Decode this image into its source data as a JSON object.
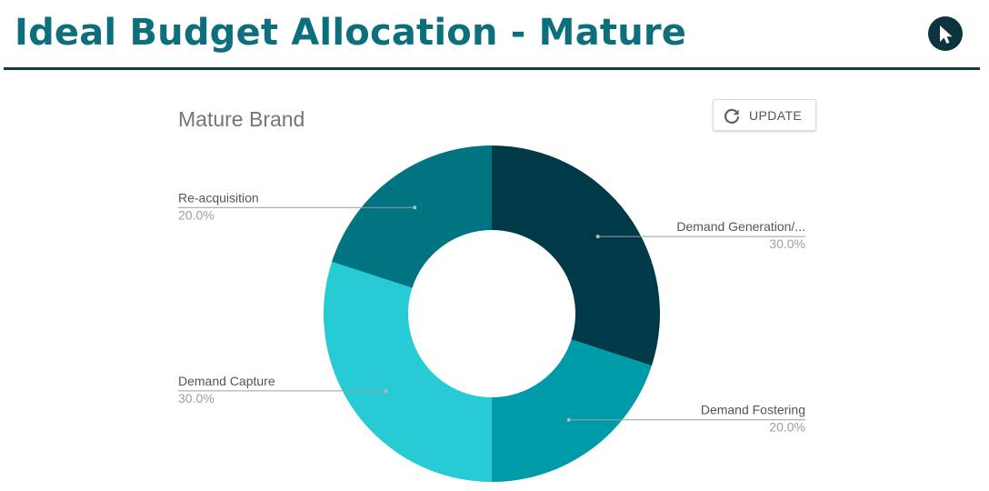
{
  "header": {
    "title": "Ideal Budget Allocation - Mature",
    "cursor_icon": "cursor-arrow-icon",
    "colors": {
      "title": "#0e6f7c",
      "rule": "#0c3b4a",
      "badge": "#0b3340"
    }
  },
  "toolbar": {
    "update_label": "UPDATE",
    "update_icon": "refresh-icon"
  },
  "chart_data": {
    "type": "pie",
    "title": "Mature Brand",
    "donut": true,
    "legend": "labels-on-leader-lines",
    "slices": [
      {
        "label": "Demand Generation/...",
        "value": 30.0,
        "value_label": "30.0%",
        "color": "#003a48"
      },
      {
        "label": "Demand Fostering",
        "value": 20.0,
        "value_label": "20.0%",
        "color": "#009ba8"
      },
      {
        "label": "Demand Capture",
        "value": 30.0,
        "value_label": "30.0%",
        "color": "#26cbd4"
      },
      {
        "label": "Re-acquisition",
        "value": 20.0,
        "value_label": "20.0%",
        "color": "#007480"
      }
    ]
  }
}
